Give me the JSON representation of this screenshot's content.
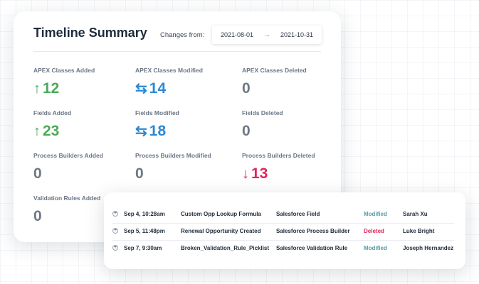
{
  "summary": {
    "title": "Timeline Summary",
    "changes_label": "Changes from:",
    "date_from": "2021-08-01",
    "date_arrow": "→",
    "date_to": "2021-10-31",
    "stats": [
      {
        "label": "APEX Classes Added",
        "value": "12",
        "icon": "arrow-up-icon",
        "glyph": "↑",
        "color": "green"
      },
      {
        "label": "APEX Classes Modified",
        "value": "14",
        "icon": "swap-icon",
        "glyph": "⇆",
        "color": "blue"
      },
      {
        "label": "APEX Classes Deleted",
        "value": "0",
        "icon": "",
        "glyph": "",
        "color": "gray"
      },
      {
        "label": "Fields Added",
        "value": "23",
        "icon": "arrow-up-icon",
        "glyph": "↑",
        "color": "green"
      },
      {
        "label": "Fields Modified",
        "value": "18",
        "icon": "swap-icon",
        "glyph": "⇆",
        "color": "blue"
      },
      {
        "label": "Fields Deleted",
        "value": "0",
        "icon": "",
        "glyph": "",
        "color": "gray"
      },
      {
        "label": "Process Builders Added",
        "value": "0",
        "icon": "",
        "glyph": "",
        "color": "gray"
      },
      {
        "label": "Process Builders Modified",
        "value": "0",
        "icon": "",
        "glyph": "",
        "color": "gray"
      },
      {
        "label": "Process Builders Deleted",
        "value": "13",
        "icon": "arrow-down-icon",
        "glyph": "↓",
        "color": "red"
      },
      {
        "label": "Validation Rules Added",
        "value": "0",
        "icon": "",
        "glyph": "",
        "color": "gray"
      }
    ]
  },
  "activity": {
    "rows": [
      {
        "expand": "+",
        "date": "Sep 4, 10:28am",
        "name": "Custom Opp Lookup Formula",
        "type": "Salesforce Field",
        "status": "Modified",
        "user": "Sarah Xu"
      },
      {
        "expand": "+",
        "date": "Sep 5, 11:48pm",
        "name": "Renewal Opportunity Created",
        "type": "Salesforce Process Builder",
        "status": "Deleted",
        "user": "Luke Bright"
      },
      {
        "expand": "+",
        "date": "Sep 7, 9:30am",
        "name": "Broken_Validation_Rule_Picklist",
        "type": "Salesforce Validation Rule",
        "status": "Modified",
        "user": "Joseph Hernandez"
      }
    ]
  },
  "colors": {
    "added": "#4caa5a",
    "modified": "#2b89d6",
    "deleted": "#e3245c",
    "neutral": "#6f7883"
  }
}
